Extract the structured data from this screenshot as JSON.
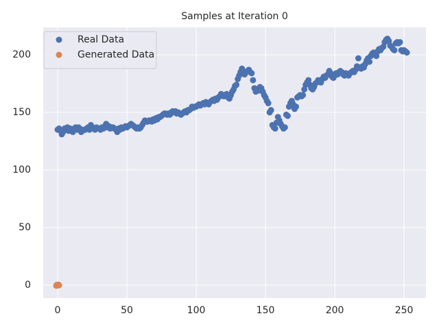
{
  "chart_data": {
    "type": "scatter",
    "title": "Samples at Iteration 0",
    "xlim": [
      -10.4,
      265.8
    ],
    "ylim": [
      -11.3,
      223.8
    ],
    "xticks": [
      0,
      50,
      100,
      150,
      200,
      250
    ],
    "yticks": [
      0,
      50,
      100,
      150,
      200
    ],
    "grid": true,
    "legend": "upper left",
    "series": [
      {
        "name": "Real Data",
        "color": "#4c72b0",
        "x": [
          0,
          1,
          2,
          3,
          4,
          5,
          6,
          7,
          8,
          9,
          10,
          11,
          12,
          13,
          14,
          15,
          16,
          17,
          18,
          19,
          20,
          21,
          22,
          23,
          24,
          25,
          26,
          27,
          28,
          29,
          30,
          31,
          32,
          33,
          34,
          35,
          36,
          37,
          38,
          39,
          40,
          41,
          42,
          43,
          44,
          45,
          46,
          47,
          48,
          49,
          50,
          51,
          52,
          53,
          54,
          55,
          56,
          57,
          58,
          59,
          60,
          61,
          62,
          63,
          64,
          65,
          66,
          67,
          68,
          69,
          70,
          71,
          72,
          73,
          74,
          75,
          76,
          77,
          78,
          79,
          80,
          81,
          82,
          83,
          84,
          85,
          86,
          87,
          88,
          89,
          90,
          91,
          92,
          93,
          94,
          95,
          96,
          97,
          98,
          99,
          100,
          101,
          102,
          103,
          104,
          105,
          106,
          107,
          108,
          109,
          110,
          111,
          112,
          113,
          114,
          115,
          116,
          117,
          118,
          119,
          120,
          121,
          122,
          123,
          124,
          125,
          126,
          127,
          128,
          129,
          130,
          131,
          132,
          133,
          134,
          135,
          136,
          137,
          138,
          139,
          140,
          141,
          142,
          143,
          144,
          145,
          146,
          147,
          148,
          149,
          150,
          151,
          152,
          153,
          154,
          155,
          156,
          157,
          158,
          159,
          160,
          161,
          162,
          163,
          164,
          165,
          166,
          167,
          168,
          169,
          170,
          171,
          172,
          173,
          174,
          175,
          176,
          177,
          178,
          179,
          180,
          181,
          182,
          183,
          184,
          185,
          186,
          187,
          188,
          189,
          190,
          191,
          192,
          193,
          194,
          195,
          196,
          197,
          198,
          199,
          200,
          201,
          202,
          203,
          204,
          205,
          206,
          207,
          208,
          209,
          210,
          211,
          212,
          213,
          214,
          215,
          216,
          217,
          218,
          219,
          220,
          221,
          222,
          223,
          224,
          225,
          226,
          227,
          228,
          229,
          230,
          231,
          232,
          233,
          234,
          235,
          236,
          237,
          238,
          239,
          240,
          241,
          242,
          243,
          244,
          245,
          246,
          247,
          248,
          249,
          250,
          251,
          252
        ],
        "values": [
          135,
          136,
          134,
          131,
          133,
          136,
          135,
          137,
          134,
          136,
          134,
          133,
          136,
          137,
          135,
          137,
          136,
          133,
          134,
          135,
          135,
          136,
          137,
          135,
          139,
          137,
          136,
          135,
          137,
          136,
          136,
          135,
          137,
          136,
          138,
          140,
          137,
          138,
          136,
          137,
          137,
          136,
          135,
          133,
          136,
          135,
          137,
          136,
          137,
          138,
          137,
          138,
          139,
          140,
          139,
          138,
          137,
          136,
          137,
          136,
          137,
          139,
          141,
          143,
          142,
          142,
          143,
          143,
          142,
          144,
          143,
          145,
          144,
          146,
          146,
          147,
          148,
          149,
          149,
          148,
          149,
          148,
          150,
          151,
          150,
          151,
          149,
          150,
          149,
          148,
          149,
          150,
          151,
          150,
          152,
          152,
          153,
          155,
          154,
          155,
          155,
          156,
          157,
          156,
          157,
          158,
          157,
          159,
          158,
          157,
          159,
          160,
          161,
          160,
          162,
          161,
          163,
          164,
          166,
          165,
          164,
          165,
          166,
          163,
          162,
          165,
          168,
          170,
          173,
          174,
          179,
          182,
          185,
          188,
          184,
          183,
          185,
          186,
          187,
          185,
          184,
          178,
          171,
          168,
          170,
          169,
          172,
          171,
          168,
          165,
          163,
          160,
          158,
          150,
          152,
          139,
          137,
          136,
          141,
          146,
          143,
          140,
          138,
          136,
          137,
          148,
          147,
          155,
          158,
          160,
          157,
          153,
          155,
          163,
          164,
          165,
          164,
          165,
          170,
          174,
          176,
          178,
          174,
          171,
          170,
          172,
          175,
          176,
          178,
          177,
          176,
          179,
          181,
          180,
          182,
          183,
          186,
          184,
          181,
          180,
          182,
          184,
          183,
          185,
          186,
          185,
          183,
          182,
          184,
          183,
          182,
          184,
          185,
          186,
          185,
          187,
          190,
          197,
          189,
          188,
          190,
          189,
          192,
          195,
          197,
          194,
          199,
          201,
          202,
          200,
          199,
          203,
          205,
          204,
          206,
          207,
          211,
          213,
          214,
          212,
          208,
          207,
          205,
          204,
          210,
          211,
          210,
          211,
          204,
          203,
          204,
          203,
          202
        ]
      },
      {
        "name": "Generated Data",
        "color": "#dd8452",
        "x": [
          -1,
          -0.6,
          -0.2,
          0.2,
          0.6,
          1
        ],
        "values": [
          -0.5,
          0.3,
          0,
          -0.3,
          0.4,
          0
        ]
      }
    ]
  }
}
